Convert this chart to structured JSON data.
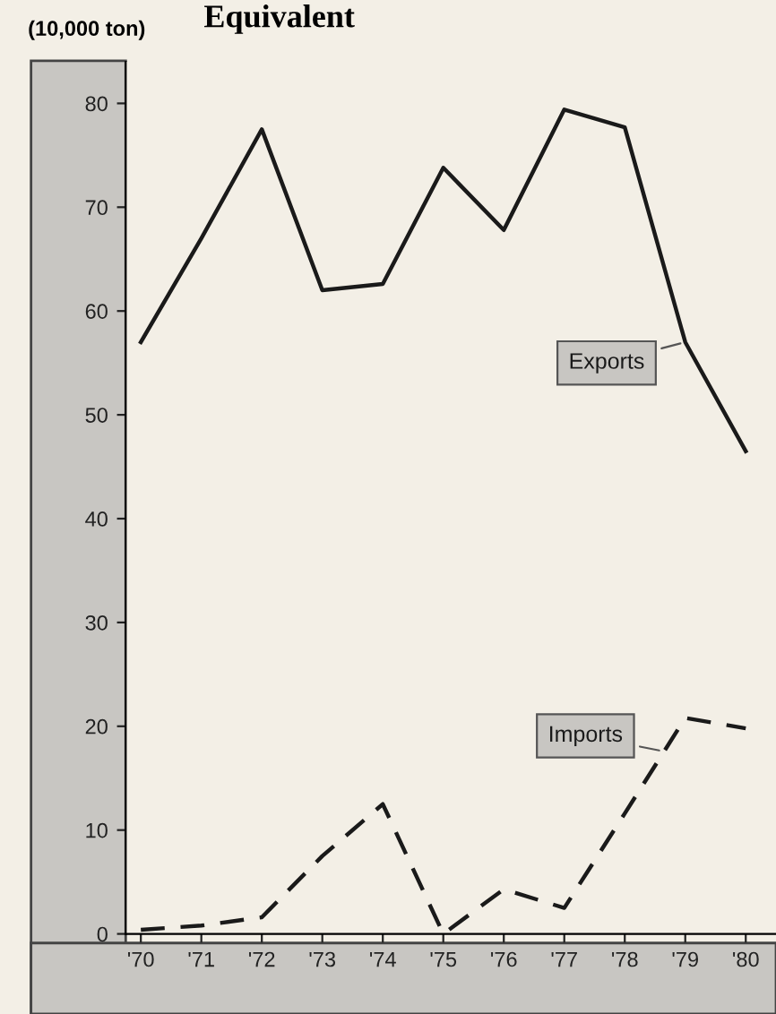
{
  "chart_data": {
    "type": "line",
    "title": "Equivalent",
    "ylabel": "(10,000 ton)",
    "categories": [
      "'70",
      "'71",
      "'72",
      "'73",
      "'74",
      "'75",
      "'76",
      "'77",
      "'78",
      "'79",
      "'80"
    ],
    "series": [
      {
        "name": "Exports",
        "color": "#1a1a1a",
        "line_style": "solid",
        "values": [
          57,
          67,
          77.5,
          62,
          62.6,
          73.8,
          67.8,
          79.4,
          77.7,
          57,
          46.5
        ]
      },
      {
        "name": "Imports",
        "color": "#1a1a1a",
        "line_style": "dashed",
        "values": [
          0.4,
          0.8,
          1.6,
          7.5,
          12.5,
          0,
          4.3,
          2.5,
          11.6,
          20.8,
          19.8
        ]
      }
    ],
    "ylim": [
      0,
      84
    ],
    "yticks": [
      0,
      10,
      20,
      30,
      40,
      50,
      60,
      70,
      80
    ],
    "grid": false,
    "legend": false,
    "marker": "none"
  }
}
